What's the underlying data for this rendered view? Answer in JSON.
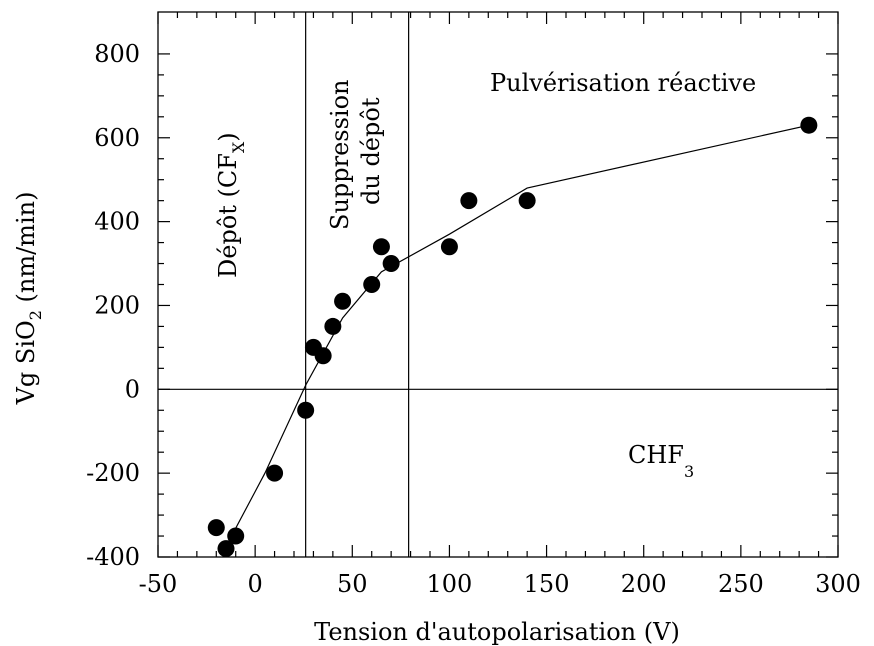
{
  "chart_data": {
    "type": "scatter",
    "title": "",
    "xlabel": "Tension d'autopolarisation (V)",
    "ylabel": {
      "prefix": "Vg SiO",
      "sub": "2",
      "suffix": " (nm/min)"
    },
    "xlim": [
      -50,
      300
    ],
    "ylim": [
      -400,
      900
    ],
    "xticks": [
      -50,
      0,
      50,
      100,
      150,
      200,
      250,
      300
    ],
    "yticks": [
      -400,
      -200,
      0,
      200,
      400,
      600,
      800
    ],
    "legend": "none",
    "grid": false,
    "reference_lines": {
      "vertical": [
        26,
        79
      ],
      "horizontal": [
        0
      ]
    },
    "series": [
      {
        "type": "scatter",
        "x": [
          -20,
          -15,
          -10,
          10,
          26,
          30,
          35,
          40,
          45,
          60,
          65,
          70,
          100,
          110,
          140,
          285
        ],
        "y": [
          -330,
          -380,
          -350,
          -200,
          -50,
          100,
          80,
          150,
          210,
          250,
          340,
          300,
          340,
          450,
          450,
          630
        ]
      },
      {
        "type": "line",
        "x": [
          -15,
          5,
          26,
          45,
          65,
          100,
          140,
          285
        ],
        "y": [
          -375,
          -200,
          10,
          170,
          280,
          370,
          480,
          630
        ]
      }
    ],
    "annotations": [
      {
        "id": "depot",
        "text": "Dépôt (CF",
        "sub": "X",
        "tail": ")"
      },
      {
        "id": "suppression",
        "lines": [
          "Suppression",
          "du dépôt"
        ]
      },
      {
        "id": "pulverisation",
        "text": "Pulvérisation réactive"
      },
      {
        "id": "chf3",
        "text": "CHF",
        "sub": "3"
      }
    ]
  }
}
